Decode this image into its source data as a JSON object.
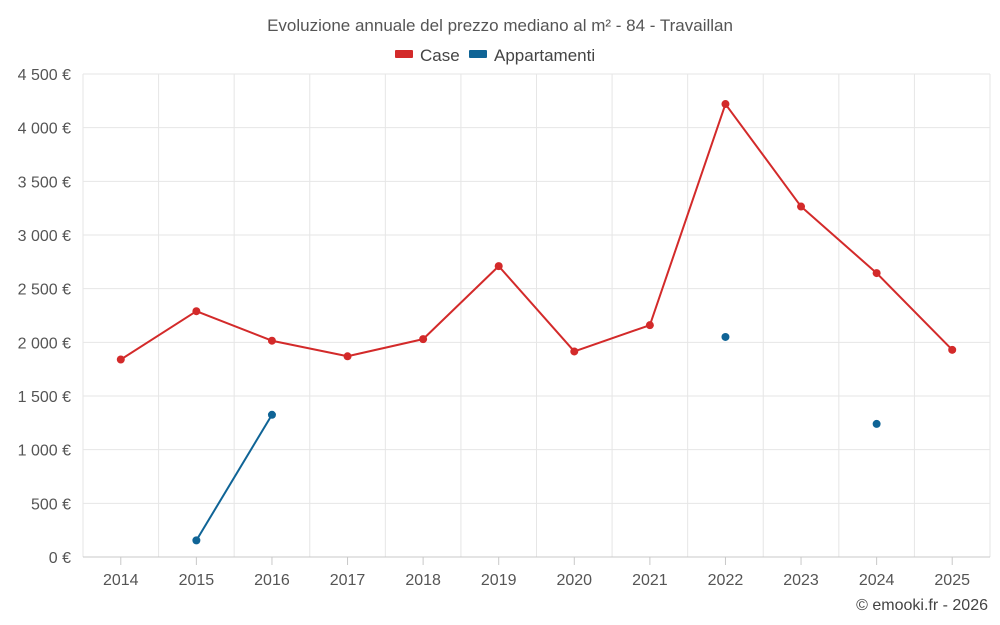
{
  "chart_data": {
    "type": "line",
    "title": "Evoluzione annuale del prezzo mediano al m² - 84 - Travaillan",
    "categories": [
      "2014",
      "2015",
      "2016",
      "2017",
      "2018",
      "2019",
      "2020",
      "2021",
      "2022",
      "2023",
      "2024",
      "2025"
    ],
    "series": [
      {
        "name": "Case",
        "color": "#d32a2a",
        "values": [
          1840,
          2290,
          2015,
          1870,
          2030,
          2710,
          1915,
          2160,
          4220,
          3265,
          2645,
          1930
        ]
      },
      {
        "name": "Appartamenti",
        "color": "#0f6496",
        "values": [
          null,
          155,
          1325,
          null,
          null,
          null,
          null,
          null,
          2050,
          null,
          1240,
          null
        ]
      }
    ],
    "ylim": [
      0,
      4500
    ],
    "yticks": [
      0,
      500,
      1000,
      1500,
      2000,
      2500,
      3000,
      3500,
      4000,
      4500
    ],
    "ytick_labels": [
      "0 €",
      "500 €",
      "1 000 €",
      "1 500 €",
      "2 000 €",
      "2 500 €",
      "3 000 €",
      "3 500 €",
      "4 000 €",
      "4 500 €"
    ],
    "xlabel": "",
    "ylabel": "",
    "legend_position": "top-center",
    "grid": true
  },
  "credit": "© emooki.fr - 2026"
}
